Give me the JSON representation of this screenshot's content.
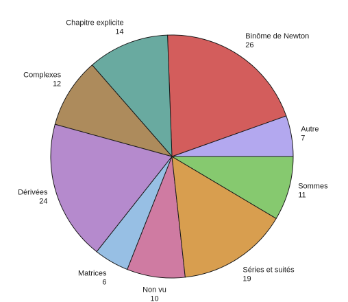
{
  "chart_data": {
    "type": "pie",
    "start_angle_deg": 0,
    "direction": "counterclockwise",
    "slices": [
      {
        "label": "Autre",
        "value": 7,
        "value_label": "7",
        "color": "#b3a8ef"
      },
      {
        "label": "Binôme de Newton",
        "value": 26,
        "value_label": "26",
        "color": "#d35d5c"
      },
      {
        "label": "Chapitre explicite",
        "value": 14,
        "value_label": "14",
        "color": "#69aaa0"
      },
      {
        "label": "Complexes",
        "value": 12,
        "value_label": "12",
        "color": "#ad8b5c"
      },
      {
        "label": "Dérivées",
        "value": 24,
        "value_label": "24",
        "color": "#b58acd"
      },
      {
        "label": "Matrices",
        "value": 6,
        "value_label": "6",
        "color": "#97bfe4"
      },
      {
        "label": "Non vu",
        "value": 10,
        "value_label": "10",
        "color": "#cf7ba2"
      },
      {
        "label": "Séries et suités",
        "value": 19,
        "value_label": "19",
        "color": "#d89e4f"
      },
      {
        "label": "Sommes",
        "value": 11,
        "value_label": "11",
        "color": "#86c96f"
      }
    ]
  }
}
